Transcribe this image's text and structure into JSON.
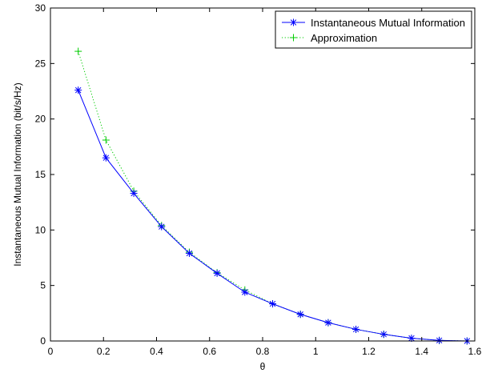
{
  "chart_data": {
    "type": "line",
    "title": "",
    "xlabel": "θ",
    "ylabel": "Instantaneous Mutual Information (bit/s/Hz)",
    "xlim": [
      0,
      1.6
    ],
    "ylim": [
      0,
      30
    ],
    "x_ticks": [
      "0",
      "0.2",
      "0.4",
      "0.6",
      "0.8",
      "1",
      "1.2",
      "1.4",
      "1.6"
    ],
    "y_ticks": [
      "0",
      "5",
      "10",
      "15",
      "20",
      "25",
      "30"
    ],
    "grid": false,
    "legend_position": "top-right",
    "x": [
      0.1047,
      0.2094,
      0.3142,
      0.4189,
      0.5236,
      0.6283,
      0.733,
      0.8378,
      0.9425,
      1.0472,
      1.1519,
      1.2566,
      1.3614,
      1.4661,
      1.5708
    ],
    "series": [
      {
        "name": "Instantaneous Mutual Information",
        "color": "#0000ff",
        "line_style": "solid",
        "marker": "asterisk",
        "values": [
          22.6,
          16.5,
          13.3,
          10.3,
          7.9,
          6.1,
          4.4,
          3.35,
          2.4,
          1.65,
          1.05,
          0.6,
          0.25,
          0.05,
          0.0
        ]
      },
      {
        "name": "Approximation",
        "color": "#00cc00",
        "line_style": "dotted",
        "marker": "plus",
        "values": [
          26.1,
          18.1,
          13.5,
          10.4,
          8.0,
          6.15,
          4.6,
          3.35,
          2.4,
          1.65,
          1.05,
          0.6,
          0.25,
          0.05,
          0.0
        ]
      }
    ]
  }
}
